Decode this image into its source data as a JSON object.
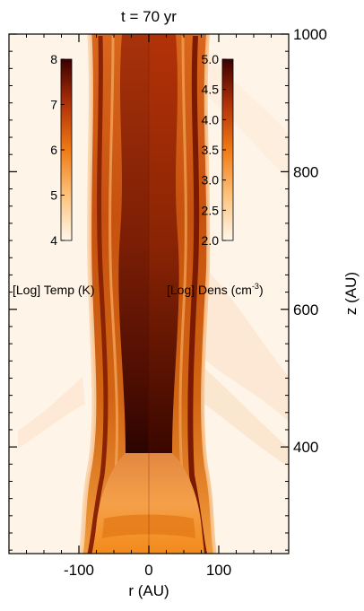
{
  "chart_data": {
    "type": "heatmap",
    "title": "t = 70 yr",
    "xlabel": "r (AU)",
    "ylabel": "z (AU)",
    "xlim": [
      -200,
      200
    ],
    "ylim": [
      245,
      1000
    ],
    "x_ticks": [
      "-100",
      "0",
      "100"
    ],
    "x_tick_values": [
      -100,
      0,
      100
    ],
    "y_ticks": [
      "400",
      "600",
      "800",
      "1000"
    ],
    "y_tick_values": [
      400,
      600,
      800,
      1000
    ],
    "left_half": "temperature",
    "right_half": "density",
    "colorbars": [
      {
        "name": "temperature",
        "label": "[Log] Temp (K)",
        "range": [
          4,
          8
        ],
        "ticks": [
          "4",
          "5",
          "6",
          "7",
          "8"
        ],
        "tick_values": [
          4,
          5,
          6,
          7,
          8
        ],
        "colors": [
          "#fff7ec",
          "#fdc27a",
          "#f07a14",
          "#b23208",
          "#3a0000"
        ]
      },
      {
        "name": "density",
        "label": "[Log] Dens (cm",
        "label_superscript": "-3",
        "label_suffix": ")",
        "range": [
          2.0,
          5.0
        ],
        "ticks": [
          "2.0",
          "2.5",
          "3.0",
          "3.5",
          "4.0",
          "4.5",
          "5.0"
        ],
        "tick_values": [
          2.0,
          2.5,
          3.0,
          3.5,
          4.0,
          4.5,
          5.0
        ],
        "colors": [
          "#fff7ec",
          "#fdc27a",
          "#f07a14",
          "#b23208",
          "#3a0000"
        ]
      }
    ],
    "background_color": "#fef4e8"
  }
}
